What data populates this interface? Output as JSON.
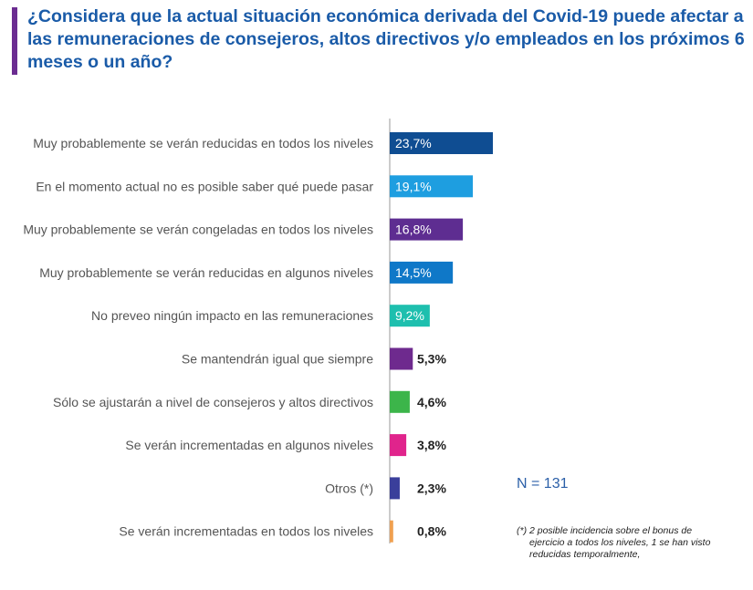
{
  "title": "¿Considera que la actual situación económica derivada del Covid-19 puede afectar a las remuneraciones de consejeros, altos directivos y/o empleados en los próximos 6 meses o un año?",
  "colors": {
    "title": "#1a5ba8",
    "accent": "#6b2c91",
    "axis": "#9a9a9a",
    "label": "#555555",
    "n_label": "#2b5fa8"
  },
  "sample_size_label": "N = 131",
  "footnote": {
    "line1": "(*) 2 posible incidencia sobre el bonus de",
    "line2": "ejercicio a todos los niveles, 1 se han visto",
    "line3": "reducidas temporalmente,"
  },
  "chart_data": {
    "type": "bar",
    "orientation": "horizontal",
    "title": "",
    "xlabel": "",
    "ylabel": "",
    "unit": "%",
    "xlim": [
      0,
      25
    ],
    "grid": false,
    "categories": [
      "Muy probablemente se verán reducidas en todos los niveles",
      "En el momento actual no es posible saber qué puede pasar",
      "Muy probablemente se verán congeladas en todos los niveles",
      "Muy probablemente se verán reducidas en algunos niveles",
      "No preveo ningún impacto en las remuneraciones",
      "Se mantendrán igual que siempre",
      "Sólo se ajustarán a nivel de consejeros y altos directivos",
      "Se verán incrementadas en algunos niveles",
      "Otros (*)",
      "Se verán incrementadas en todos los niveles"
    ],
    "values": [
      23.7,
      19.1,
      16.8,
      14.5,
      9.2,
      5.3,
      4.6,
      3.8,
      2.3,
      0.8
    ],
    "data_labels": [
      "23,7%",
      "19,1%",
      "16,8%",
      "14,5%",
      "9,2%",
      "5,3%",
      "4,6%",
      "3,8%",
      "2,3%",
      "0,8%"
    ],
    "bar_colors": [
      "#0f4d92",
      "#1e9ee0",
      "#5e2d91",
      "#0f78c8",
      "#1ebfae",
      "#6e2a8e",
      "#3cb54a",
      "#e0248c",
      "#3a3f9b",
      "#f0a050"
    ]
  }
}
